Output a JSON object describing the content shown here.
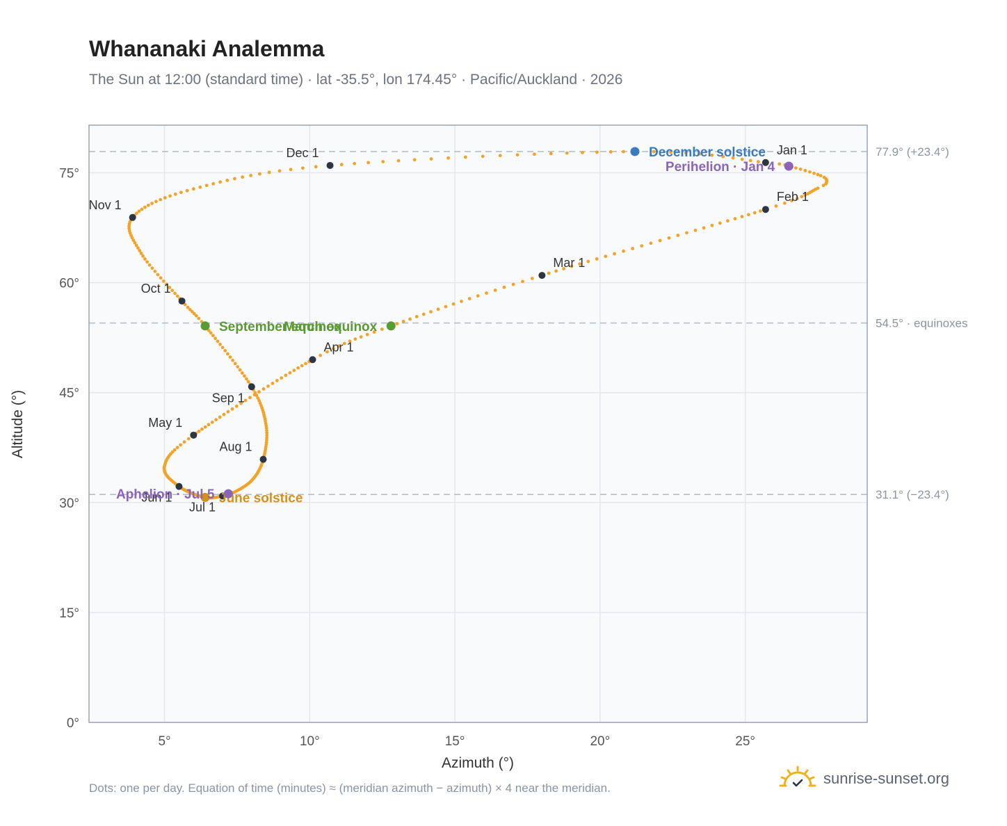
{
  "header": {
    "title": "Whananaki Analemma",
    "subtitle": "The Sun at 12:00 (standard time) · lat -35.5°, lon 174.45° · Pacific/Auckland · 2026"
  },
  "footer": {
    "note": "Dots: one per day. Equation of time (minutes) ≈ (meridian azimuth − azimuth) × 4 near the meridian.",
    "brand": "sunrise-sunset.org"
  },
  "colors": {
    "curve": "#f2a42a",
    "month_marker": "#2d3540",
    "december_solstice": "#3a7bbf",
    "june_solstice": "#d4921c",
    "equinox": "#5a9a32",
    "apsis": "#8a65b8",
    "reference_line": "#b6bec8",
    "plot_bg": "#f8fafc",
    "grid": "#e4e8ee",
    "axis": "#9aa4b2",
    "brand_sun": "#f2b21c"
  },
  "chart_data": {
    "type": "scatter",
    "xlabel": "Azimuth (°)",
    "ylabel": "Altitude (°)",
    "xlim": [
      2.4,
      29.2
    ],
    "ylim": [
      0,
      81.5
    ],
    "x_ticks": [
      5,
      10,
      15,
      20,
      25
    ],
    "x_tick_labels": [
      "5°",
      "10°",
      "15°",
      "20°",
      "25°"
    ],
    "y_ticks": [
      0,
      15,
      30,
      45,
      60,
      75
    ],
    "y_tick_labels": [
      "0°",
      "15°",
      "30°",
      "45°",
      "60°",
      "75°"
    ],
    "grid": true,
    "reference_lines": [
      {
        "y": 77.9,
        "label": "77.9° (+23.4°)"
      },
      {
        "y": 54.5,
        "label": "54.5° · equinoxes"
      },
      {
        "y": 31.1,
        "label": "31.1° (−23.4°)"
      }
    ],
    "analemma_anchors": [
      {
        "doy": 1,
        "x": 25.7,
        "y": 76.4
      },
      {
        "doy": 5,
        "x": 26.6,
        "y": 75.8
      },
      {
        "doy": 12,
        "x": 27.6,
        "y": 74.6
      },
      {
        "doy": 16,
        "x": 27.8,
        "y": 73.8
      },
      {
        "doy": 20,
        "x": 27.5,
        "y": 72.9
      },
      {
        "doy": 32,
        "x": 25.7,
        "y": 70.0
      },
      {
        "doy": 60,
        "x": 18.0,
        "y": 61.0
      },
      {
        "doy": 79,
        "x": 12.8,
        "y": 54.1
      },
      {
        "doy": 91,
        "x": 10.1,
        "y": 49.5
      },
      {
        "doy": 121,
        "x": 6.0,
        "y": 39.2
      },
      {
        "doy": 135,
        "x": 5.0,
        "y": 35.0
      },
      {
        "doy": 152,
        "x": 5.5,
        "y": 32.2
      },
      {
        "doy": 172,
        "x": 6.4,
        "y": 30.7
      },
      {
        "doy": 182,
        "x": 7.0,
        "y": 30.9
      },
      {
        "doy": 186,
        "x": 7.3,
        "y": 31.2
      },
      {
        "doy": 200,
        "x": 8.0,
        "y": 33.0
      },
      {
        "doy": 213,
        "x": 8.4,
        "y": 35.9
      },
      {
        "doy": 228,
        "x": 8.5,
        "y": 40.5
      },
      {
        "doy": 244,
        "x": 8.0,
        "y": 45.8
      },
      {
        "doy": 265,
        "x": 6.4,
        "y": 54.1
      },
      {
        "doy": 274,
        "x": 5.6,
        "y": 57.5
      },
      {
        "doy": 290,
        "x": 4.2,
        "y": 64.0
      },
      {
        "doy": 305,
        "x": 3.9,
        "y": 68.9
      },
      {
        "doy": 320,
        "x": 6.0,
        "y": 72.8
      },
      {
        "doy": 335,
        "x": 10.7,
        "y": 76.0
      },
      {
        "doy": 355,
        "x": 21.2,
        "y": 77.9
      },
      {
        "doy": 366,
        "x": 25.7,
        "y": 76.4
      }
    ],
    "month_markers": [
      {
        "label": "Jan 1",
        "x": 25.7,
        "y": 76.4,
        "label_pos": "top-right"
      },
      {
        "label": "Feb 1",
        "x": 25.7,
        "y": 70.0,
        "label_pos": "top-right"
      },
      {
        "label": "Mar 1",
        "x": 18.0,
        "y": 61.0,
        "label_pos": "top-right"
      },
      {
        "label": "Apr 1",
        "x": 10.1,
        "y": 49.5,
        "label_pos": "top-right"
      },
      {
        "label": "May 1",
        "x": 6.0,
        "y": 39.2,
        "label_pos": "top-left"
      },
      {
        "label": "Jun 1",
        "x": 5.5,
        "y": 32.2,
        "label_pos": "bottom-left"
      },
      {
        "label": "Jul 1",
        "x": 7.0,
        "y": 30.9,
        "label_pos": "bottom-left"
      },
      {
        "label": "Aug 1",
        "x": 8.4,
        "y": 35.9,
        "label_pos": "top-left"
      },
      {
        "label": "Sep 1",
        "x": 8.0,
        "y": 45.8,
        "label_pos": "bottom-left"
      },
      {
        "label": "Oct 1",
        "x": 5.6,
        "y": 57.5,
        "label_pos": "top-left"
      },
      {
        "label": "Nov 1",
        "x": 3.9,
        "y": 68.9,
        "label_pos": "top-left"
      },
      {
        "label": "Dec 1",
        "x": 10.7,
        "y": 76.0,
        "label_pos": "top-left"
      }
    ],
    "events": [
      {
        "label": "December solstice",
        "x": 21.2,
        "y": 77.9,
        "color": "#3a7bbf",
        "label_pos": "right"
      },
      {
        "label": "Perihelion · Jan 4",
        "x": 26.5,
        "y": 75.9,
        "color": "#8a65b8",
        "label_pos": "left"
      },
      {
        "label": "March equinox",
        "x": 12.8,
        "y": 54.1,
        "color": "#5a9a32",
        "label_pos": "left"
      },
      {
        "label": "September equinox",
        "x": 6.4,
        "y": 54.1,
        "color": "#5a9a32",
        "label_pos": "right"
      },
      {
        "label": "June solstice",
        "x": 6.4,
        "y": 30.7,
        "color": "#d4921c",
        "label_pos": "right"
      },
      {
        "label": "Aphelion · Jul 5",
        "x": 7.2,
        "y": 31.2,
        "color": "#8a65b8",
        "label_pos": "left"
      }
    ]
  }
}
